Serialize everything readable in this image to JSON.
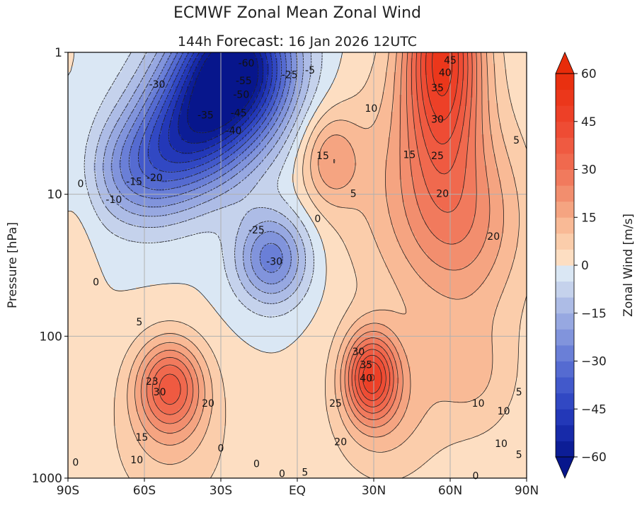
{
  "chart_data": {
    "type": "heatmap",
    "title": "ECMWF Zonal Mean Zonal Wind",
    "subtitle": {
      "lead": "144h",
      "label": "Forecast:",
      "date": "16 Jan 2026",
      "time": "12UTC"
    },
    "xlabel": "",
    "ylabel": "Pressure [hPa]",
    "x_ticks": [
      "90S",
      "60S",
      "30S",
      "EQ",
      "30N",
      "60N",
      "90N"
    ],
    "x_tick_values": [
      -90,
      -60,
      -30,
      0,
      30,
      60,
      90
    ],
    "y_ticks": [
      "1",
      "10",
      "100",
      "1000"
    ],
    "y_tick_values": [
      1,
      10,
      100,
      1000
    ],
    "y_scale": "log",
    "y_inverted": true,
    "xlim": [
      -90,
      90
    ],
    "ylim": [
      1000,
      1
    ],
    "grid": true,
    "colorbar": {
      "label": "Zonal Wind [m/s]",
      "ticks": [
        "60",
        "45",
        "30",
        "15",
        "0",
        "−15",
        "−30",
        "−45",
        "−60"
      ],
      "tick_values": [
        60,
        45,
        30,
        15,
        0,
        -15,
        -30,
        -45,
        -60
      ],
      "range": [
        -60,
        60
      ],
      "step": 5,
      "extend": "both"
    },
    "features": [
      {
        "name": "southern stratospheric easterly core",
        "lat": -22,
        "p": 1.5,
        "u": -60
      },
      {
        "name": "tropical easterly tongue",
        "lat": -8,
        "p": 30,
        "u": -30
      },
      {
        "name": "northern polar night jet",
        "lat": 55,
        "p": 1.5,
        "u": 45
      },
      {
        "name": "northern secondary maximum",
        "lat": 13,
        "p": 6,
        "u": 15
      },
      {
        "name": "southern subtropical jet",
        "lat": -50,
        "p": 200,
        "u": 30
      },
      {
        "name": "northern subtropical jet",
        "lat": 30,
        "p": 180,
        "u": 40
      }
    ],
    "contour_labels": [
      {
        "text": "-60",
        "lat": -20,
        "p": 1.2
      },
      {
        "text": "-55",
        "lat": -21,
        "p": 1.6
      },
      {
        "text": "-50",
        "lat": -22,
        "p": 2.0
      },
      {
        "text": "-45",
        "lat": -23,
        "p": 2.7
      },
      {
        "text": "-40",
        "lat": -25,
        "p": 3.6
      },
      {
        "text": "-35",
        "lat": -36,
        "p": 2.8
      },
      {
        "text": "-30",
        "lat": -55,
        "p": 1.7
      },
      {
        "text": "-25",
        "lat": -3,
        "p": 1.45
      },
      {
        "text": "-5",
        "lat": 5,
        "p": 1.35
      },
      {
        "text": "-25",
        "lat": -16,
        "p": 18
      },
      {
        "text": "-30",
        "lat": -9,
        "p": 30
      },
      {
        "text": "-20",
        "lat": -56,
        "p": 7.7
      },
      {
        "text": "-15",
        "lat": -64,
        "p": 8.2
      },
      {
        "text": "-10",
        "lat": -72,
        "p": 11
      },
      {
        "text": "0",
        "lat": 8,
        "p": 15
      },
      {
        "text": "0",
        "lat": -85,
        "p": 8.5
      },
      {
        "text": "10",
        "lat": 29,
        "p": 2.5
      },
      {
        "text": "15",
        "lat": 10,
        "p": 5.4
      },
      {
        "text": "15",
        "lat": 44,
        "p": 5.3
      },
      {
        "text": "5",
        "lat": 22,
        "p": 10
      },
      {
        "text": "45",
        "lat": 60,
        "p": 1.15
      },
      {
        "text": "40",
        "lat": 58,
        "p": 1.4
      },
      {
        "text": "35",
        "lat": 55,
        "p": 1.8
      },
      {
        "text": "30",
        "lat": 55,
        "p": 3.0
      },
      {
        "text": "25",
        "lat": 55,
        "p": 5.4
      },
      {
        "text": "20",
        "lat": 57,
        "p": 10
      },
      {
        "text": "20",
        "lat": 77,
        "p": 20
      },
      {
        "text": "5",
        "lat": 86,
        "p": 4.2
      },
      {
        "text": "0",
        "lat": -79,
        "p": 42
      },
      {
        "text": "5",
        "lat": -62,
        "p": 80
      },
      {
        "text": "23",
        "lat": -57,
        "p": 210
      },
      {
        "text": "30",
        "lat": -54,
        "p": 250
      },
      {
        "text": "20",
        "lat": -35,
        "p": 300
      },
      {
        "text": "15",
        "lat": -61,
        "p": 520
      },
      {
        "text": "10",
        "lat": -63,
        "p": 750
      },
      {
        "text": "0",
        "lat": -87,
        "p": 780
      },
      {
        "text": "0",
        "lat": -30,
        "p": 620
      },
      {
        "text": "0",
        "lat": -16,
        "p": 800
      },
      {
        "text": "0",
        "lat": -6,
        "p": 940
      },
      {
        "text": "5",
        "lat": 3,
        "p": 920
      },
      {
        "text": "30",
        "lat": 24,
        "p": 130
      },
      {
        "text": "35",
        "lat": 27,
        "p": 160
      },
      {
        "text": "40",
        "lat": 27,
        "p": 200
      },
      {
        "text": "25",
        "lat": 15,
        "p": 300
      },
      {
        "text": "20",
        "lat": 17,
        "p": 560
      },
      {
        "text": "10",
        "lat": 71,
        "p": 300
      },
      {
        "text": "10",
        "lat": 81,
        "p": 340
      },
      {
        "text": "10",
        "lat": 80,
        "p": 575
      },
      {
        "text": "5",
        "lat": 87,
        "p": 250
      },
      {
        "text": "5",
        "lat": 87,
        "p": 690
      },
      {
        "text": "0",
        "lat": 70,
        "p": 970
      }
    ]
  }
}
